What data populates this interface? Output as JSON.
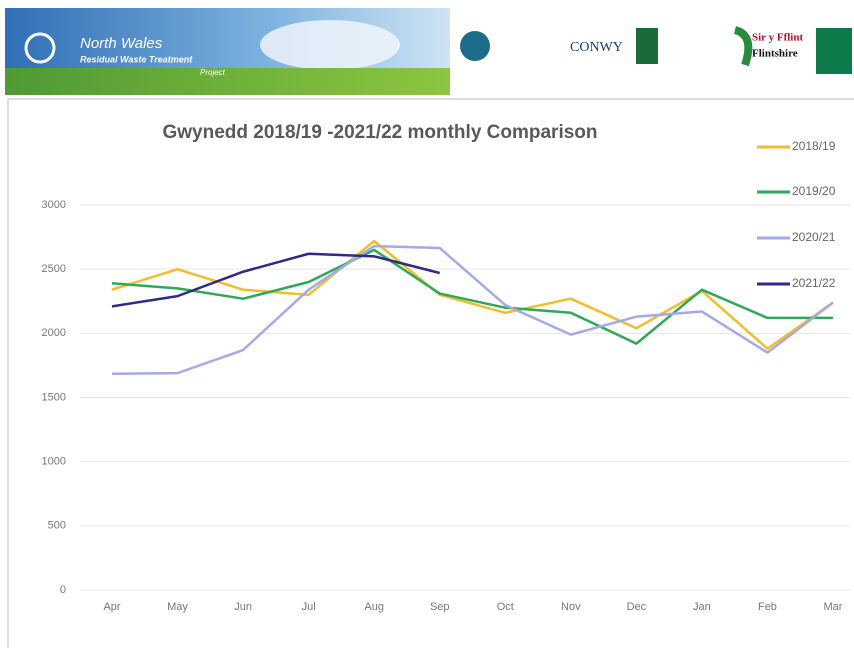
{
  "header": {
    "banner": {
      "title": "North Wales",
      "subtitle": "Residual Waste Treatment",
      "tag": "Project"
    },
    "logos": [
      "CONWY",
      "Sir y Fflint",
      "Flintshire"
    ]
  },
  "chart_data": {
    "type": "line",
    "title": "Gwynedd 2018/19 -2021/22 monthly Comparison",
    "categories": [
      "Apr",
      "May",
      "Jun",
      "Jul",
      "Aug",
      "Sep",
      "Oct",
      "Nov",
      "Dec",
      "Jan",
      "Feb",
      "Mar"
    ],
    "series": [
      {
        "name": "2018/19",
        "color": "#f2bd2c",
        "values": [
          2340,
          2500,
          2340,
          2300,
          2720,
          2300,
          2160,
          2270,
          2040,
          2330,
          1880,
          2240
        ]
      },
      {
        "name": "2019/20",
        "color": "#2fa85a",
        "values": [
          2390,
          2350,
          2270,
          2400,
          2650,
          2310,
          2200,
          2160,
          1920,
          2340,
          2120,
          2120
        ]
      },
      {
        "name": "2020/21",
        "color": "#a3aae6",
        "values": [
          1685,
          1690,
          1870,
          2340,
          2680,
          2665,
          2220,
          1990,
          2130,
          2170,
          1850,
          2240
        ]
      },
      {
        "name": "2021/22",
        "color": "#2f2a86",
        "values": [
          2210,
          2290,
          2480,
          2620,
          2600,
          2470,
          null,
          null,
          null,
          null,
          null,
          null
        ]
      }
    ],
    "ylim": [
      0,
      3000
    ],
    "yticks": [
      0,
      500,
      1000,
      1500,
      2000,
      2500,
      3000
    ],
    "grid": true,
    "legend": "right"
  }
}
